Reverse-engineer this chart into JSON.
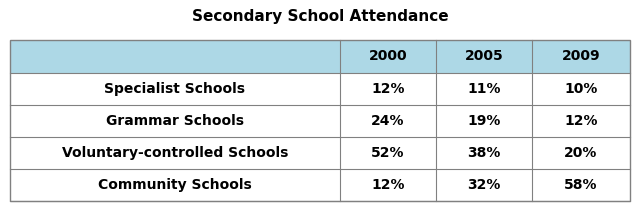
{
  "title": "Secondary School Attendance",
  "col_headers": [
    "",
    "2000",
    "2005",
    "2009"
  ],
  "rows": [
    [
      "Specialist Schools",
      "12%",
      "11%",
      "10%"
    ],
    [
      "Grammar Schools",
      "24%",
      "19%",
      "12%"
    ],
    [
      "Voluntary-controlled Schools",
      "52%",
      "38%",
      "20%"
    ],
    [
      "Community Schools",
      "12%",
      "32%",
      "58%"
    ]
  ],
  "header_bg": "#ADD8E6",
  "header_text_color": "#000000",
  "row_bg": "#FFFFFF",
  "row_text_color": "#000000",
  "border_color": "#808080",
  "title_fontsize": 11,
  "header_fontsize": 10,
  "cell_fontsize": 10,
  "figsize": [
    6.4,
    2.1
  ],
  "dpi": 100
}
